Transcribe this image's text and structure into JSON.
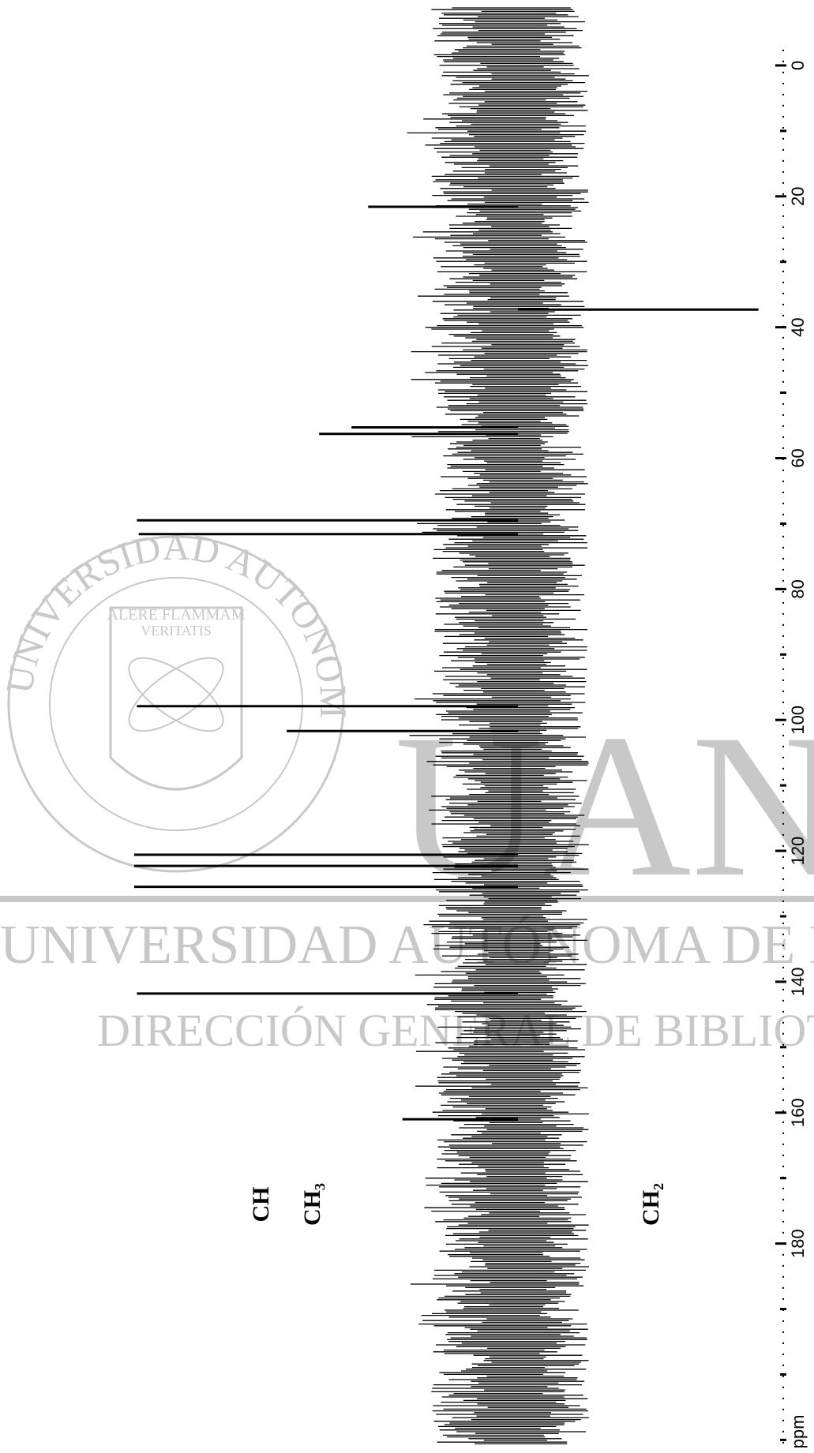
{
  "chart_data": {
    "type": "stick",
    "x_label": "ppm",
    "annotations": [
      "CH",
      "CH₃",
      "CH₂"
    ],
    "xlim": [
      -10,
      212
    ],
    "ylim": [
      -3.2,
      5.6
    ],
    "xticks": [
      0,
      20,
      40,
      60,
      80,
      100,
      120,
      140,
      160,
      180
    ],
    "minor_xticks": [
      10,
      30,
      50,
      70,
      90,
      110,
      130,
      150,
      170,
      190,
      200,
      210
    ],
    "x": [
      21.6,
      37.3,
      55.3,
      56.3,
      69.5,
      71.6,
      97.9,
      101.7,
      120.6,
      122.3,
      125.5,
      141.8,
      161.0
    ],
    "values": [
      1.62,
      -2.6,
      1.8,
      2.15,
      4.12,
      4.1,
      4.12,
      2.5,
      4.15,
      4.15,
      4.15,
      4.12,
      1.25
    ],
    "color": "#000000"
  },
  "watermark": {
    "seal_text": "UNIVERSIDAD AUTONOMA DE NUEVO LEON",
    "motto_1": "ALERE FLAMMAM",
    "motto_2": "VERITATIS",
    "logo": "UANL",
    "university": "UNIVERSIDAD AUTÓNOMA DE NUEVO LEÓN",
    "department": "DIRECCIÓN GENERAL DE BIBLIOTECAS"
  }
}
